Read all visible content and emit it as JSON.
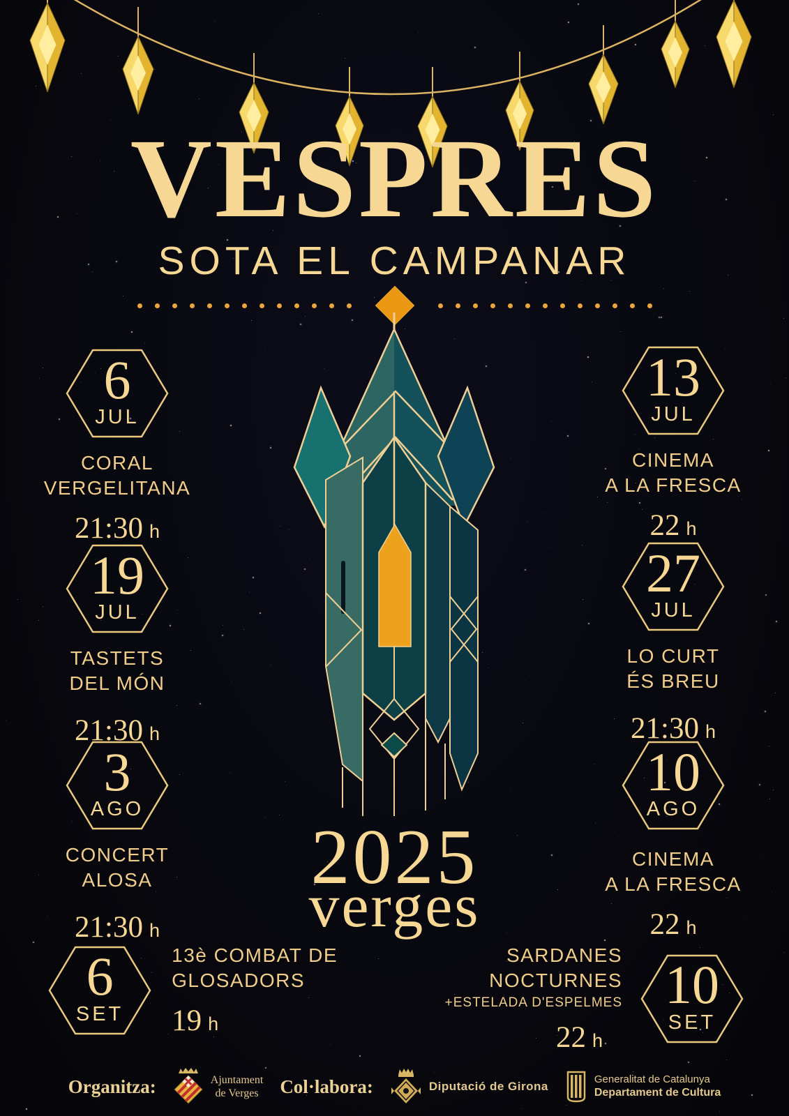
{
  "title": "VESPRES",
  "subtitle": "SOTA EL CAMPANAR",
  "year": "2025",
  "town": "verges",
  "events_left": [
    {
      "day": "6",
      "month": "JUL",
      "lines": [
        "CORAL",
        "VERGELITANA"
      ],
      "time": "21:30",
      "suffix": "h"
    },
    {
      "day": "19",
      "month": "JUL",
      "lines": [
        "TASTETS",
        "DEL MÓN"
      ],
      "time": "21:30",
      "suffix": "h"
    },
    {
      "day": "3",
      "month": "AGO",
      "lines": [
        "CONCERT",
        "ALOSA"
      ],
      "time": "21:30",
      "suffix": "h"
    },
    {
      "day": "6",
      "month": "SET",
      "lines": [
        "13è COMBAT DE",
        "GLOSADORS"
      ],
      "time": "19",
      "suffix": "h"
    }
  ],
  "events_right": [
    {
      "day": "13",
      "month": "JUL",
      "lines": [
        "CINEMA",
        "A LA FRESCA"
      ],
      "time": "22",
      "suffix": "h"
    },
    {
      "day": "27",
      "month": "JUL",
      "lines": [
        "LO CURT",
        "ÉS BREU"
      ],
      "time": "21:30",
      "suffix": "h"
    },
    {
      "day": "10",
      "month": "AGO",
      "lines": [
        "CINEMA",
        "A LA FRESCA"
      ],
      "time": "22",
      "suffix": "h"
    },
    {
      "day": "10",
      "month": "SET",
      "lines": [
        "SARDANES",
        "NOCTURNES"
      ],
      "extra": "+ESTELADA D'ESPELMES",
      "time": "22",
      "suffix": "h"
    }
  ],
  "footer": {
    "organitza_label": "Organitza:",
    "collabora_label": "Col·labora:",
    "ajuntament": {
      "line1": "Ajuntament",
      "line2": "de Verges"
    },
    "diputacio": {
      "label": "Diputació de Girona"
    },
    "generalitat": {
      "line1": "Generalitat de Catalunya",
      "line2": "Departament de Cultura"
    }
  },
  "colors": {
    "cream": "#f6d794",
    "gold": "#eac97f",
    "orange": "#ea9712",
    "teal_light": "#376b63",
    "teal_mid": "#2c6561",
    "teal_dark": "#15515a",
    "teal_navy": "#0e3a48",
    "teal_deep": "#0d4046",
    "background": "#08080f"
  }
}
